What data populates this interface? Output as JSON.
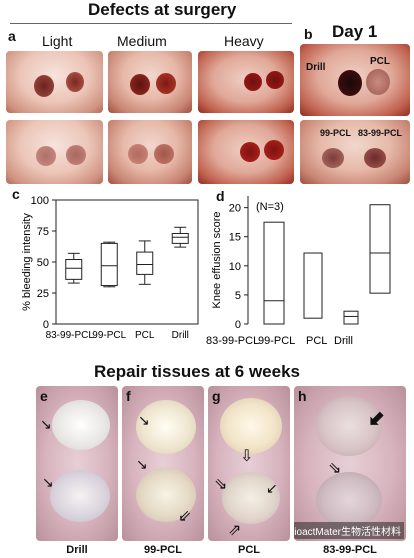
{
  "title_top": "Defects at surgery",
  "title_day1": "Day 1",
  "title_bottom": "Repair tissues at 6 weeks",
  "panel_labels": {
    "a": "a",
    "b": "b",
    "c": "c",
    "d": "d",
    "e": "e",
    "f": "f",
    "g": "g",
    "h": "h"
  },
  "panel_a": {
    "columns": [
      "Light",
      "Medium",
      "Heavy"
    ]
  },
  "panel_b": {
    "labels": [
      "Drill",
      "PCL",
      "99-PCL",
      "83-99-PCL"
    ]
  },
  "bottom_labels": [
    "Drill",
    "99-PCL",
    "PCL",
    "83-99-PCL"
  ],
  "watermark": "BioactMater生物活性材料",
  "colors": {
    "photo_tissue": "#e7b9a9",
    "blood": "#8e1c1a",
    "repair": "#d7b3be"
  },
  "chart_data": [
    {
      "type": "box",
      "ylabel": "% bleeding intensity",
      "ylim": [
        0,
        100
      ],
      "yticks": [
        0,
        25,
        50,
        75,
        100
      ],
      "categories": [
        "83-99-PCL",
        "99-PCL",
        "PCL",
        "Drill"
      ],
      "boxes": [
        {
          "min": 33,
          "q1": 36,
          "median": 45,
          "q3": 52,
          "max": 57
        },
        {
          "min": 30,
          "q1": 31,
          "median": 47,
          "q3": 65,
          "max": 66
        },
        {
          "min": 32,
          "q1": 40,
          "median": 48,
          "q3": 58,
          "max": 67
        },
        {
          "min": 62,
          "q1": 65,
          "median": 70,
          "q3": 73,
          "max": 78
        }
      ]
    },
    {
      "type": "box",
      "annotation": "(N=3)",
      "ylabel": "Knee effusion score",
      "ylim": [
        0,
        22
      ],
      "yticks": [
        0,
        5,
        10,
        15,
        20
      ],
      "categories": [
        "83-99-PCL",
        "99-PCL",
        "PCL",
        "Drill"
      ],
      "boxes": [
        {
          "low": 0,
          "median": 4,
          "high": 17.5
        },
        {
          "low": 1,
          "median": null,
          "high": 12.2
        },
        {
          "low": 0,
          "median": 1.3,
          "high": 2.2
        },
        {
          "low": 5.3,
          "median": 12.2,
          "high": 20.5
        }
      ]
    }
  ]
}
